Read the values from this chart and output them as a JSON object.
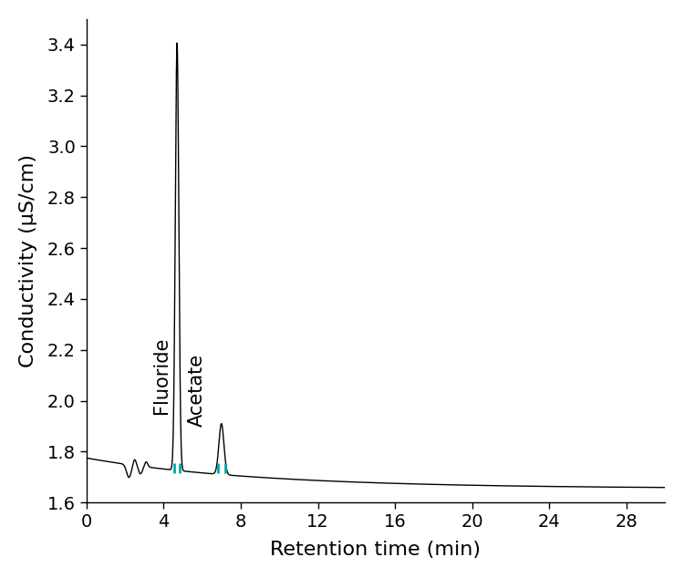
{
  "title": "",
  "xlabel": "Retention time (min)",
  "ylabel": "Conductivity (μS/cm)",
  "xlim": [
    0,
    30
  ],
  "ylim": [
    1.6,
    3.5
  ],
  "yticks": [
    1.6,
    1.8,
    2.0,
    2.2,
    2.4,
    2.6,
    2.8,
    3.0,
    3.2,
    3.4
  ],
  "xticks": [
    0,
    4,
    8,
    12,
    16,
    20,
    24,
    28
  ],
  "fluoride_label": "Fluoride",
  "acetate_label": "Acetate",
  "fluoride_peak_x": 4.7,
  "fluoride_peak_y": 3.43,
  "acetate_peak_x": 7.0,
  "acetate_peak_y": 1.9,
  "baseline_color": "#000000",
  "marker_color": "#00aaaa",
  "label_fontsize": 15,
  "tick_fontsize": 14,
  "axis_label_fontsize": 16
}
